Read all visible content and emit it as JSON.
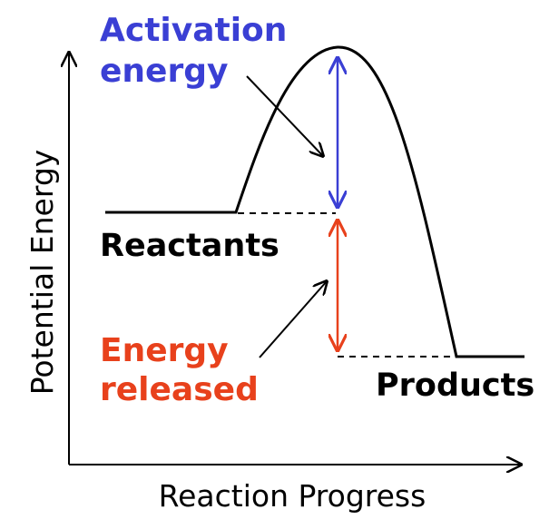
{
  "diagram": {
    "y_axis_label": "Potential Energy",
    "x_axis_label": "Reaction Progress",
    "reactants_label": "Reactants",
    "products_label": "Products",
    "activation_label_line1": "Activation",
    "activation_label_line2": "energy",
    "released_label_line1": "Energy",
    "released_label_line2": "released"
  },
  "colors": {
    "activation": "#3a3fd4",
    "released": "#e8411c",
    "curve": "#000000"
  }
}
